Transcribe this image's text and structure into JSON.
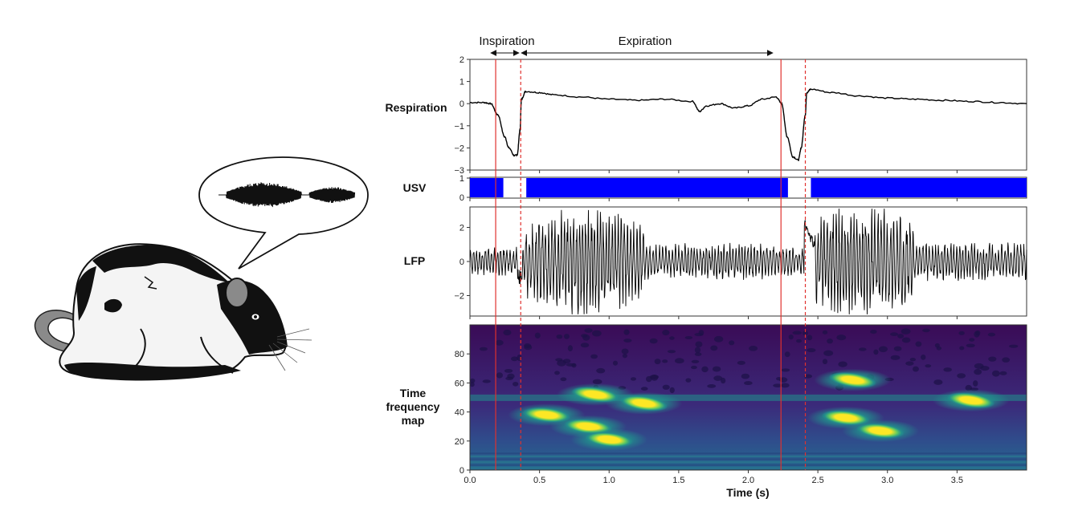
{
  "illustration": {
    "subject": "rat-illustration",
    "bubble": "speech-bubble-with-usv-waveform"
  },
  "annotations": {
    "inspiration": "Inspiration",
    "expiration": "Expiration"
  },
  "panels": {
    "respiration": {
      "label": "Respiration",
      "yticks": [
        "2",
        "1",
        "0",
        "−1",
        "−2",
        "−3"
      ]
    },
    "usv": {
      "label": "USV",
      "yticks": [
        "1",
        "0"
      ]
    },
    "lfp": {
      "label": "LFP",
      "yticks": [
        "2",
        "0",
        "−2"
      ]
    },
    "tfmap": {
      "label_lines": [
        "Time",
        "frequency",
        "map"
      ],
      "yticks": [
        "80",
        "60",
        "40",
        "20",
        "0"
      ]
    }
  },
  "xaxis": {
    "title": "Time (s)",
    "ticks": [
      "0.0",
      "0.5",
      "1.0",
      "1.5",
      "2.0",
      "2.5",
      "3.0",
      "3.5"
    ]
  },
  "colors": {
    "usv_bar": "#0000ff",
    "marker": "#e0312e",
    "trace": "#000000",
    "tf_low": "#440154",
    "tf_high": "#fde725"
  },
  "chart_data": {
    "type": "line",
    "x_range": [
      0,
      4.0
    ],
    "markers": {
      "solid_s": [
        0.185,
        2.235
      ],
      "dashed_s": [
        0.365,
        2.41
      ]
    },
    "breath_phases": [
      {
        "phase": "Inspiration",
        "start_s": 0.14,
        "end_s": 0.365
      },
      {
        "phase": "Expiration",
        "start_s": 0.365,
        "end_s": 2.2
      }
    ],
    "respiration": {
      "ylim": [
        -3,
        2
      ],
      "x": [
        0.0,
        0.1,
        0.15,
        0.2,
        0.25,
        0.28,
        0.32,
        0.34,
        0.36,
        0.37,
        0.4,
        0.5,
        0.6,
        0.8,
        1.0,
        1.2,
        1.4,
        1.6,
        1.65,
        1.7,
        1.8,
        1.9,
        2.0,
        2.1,
        2.2,
        2.24,
        2.28,
        2.32,
        2.36,
        2.38,
        2.41,
        2.42,
        2.45,
        2.6,
        2.8,
        3.0,
        3.2,
        3.4,
        3.6,
        3.8,
        4.0
      ],
      "y": [
        0.05,
        0.05,
        0.0,
        -0.5,
        -1.5,
        -2.0,
        -2.35,
        -2.3,
        -1.2,
        0.2,
        0.55,
        0.5,
        0.4,
        0.3,
        0.2,
        0.15,
        0.2,
        0.1,
        -0.35,
        -0.1,
        0.0,
        -0.2,
        -0.1,
        0.2,
        0.3,
        0.0,
        -1.5,
        -2.4,
        -2.55,
        -2.0,
        -0.5,
        0.5,
        0.65,
        0.5,
        0.35,
        0.25,
        0.2,
        0.15,
        0.1,
        0.05,
        0.0
      ]
    },
    "usv": {
      "ylim": [
        0,
        1
      ],
      "off_intervals_s": [
        [
          0.24,
          0.405
        ],
        [
          2.285,
          2.45
        ]
      ]
    },
    "lfp": {
      "ylim": [
        -3.2,
        3.2
      ],
      "note": "oscillatory trace; amplitude ~1 at baseline, up to ~3 during expiration bursts"
    },
    "tfmap": {
      "type": "heatmap",
      "ylim": [
        0,
        100
      ],
      "hot_spots": [
        {
          "t_s": 0.55,
          "f_hz": 38
        },
        {
          "t_s": 0.85,
          "f_hz": 30
        },
        {
          "t_s": 1.0,
          "f_hz": 21
        },
        {
          "t_s": 0.9,
          "f_hz": 52
        },
        {
          "t_s": 1.25,
          "f_hz": 46
        },
        {
          "t_s": 2.7,
          "f_hz": 36
        },
        {
          "t_s": 2.95,
          "f_hz": 27
        },
        {
          "t_s": 2.75,
          "f_hz": 62
        },
        {
          "t_s": 3.6,
          "f_hz": 48
        }
      ]
    }
  }
}
